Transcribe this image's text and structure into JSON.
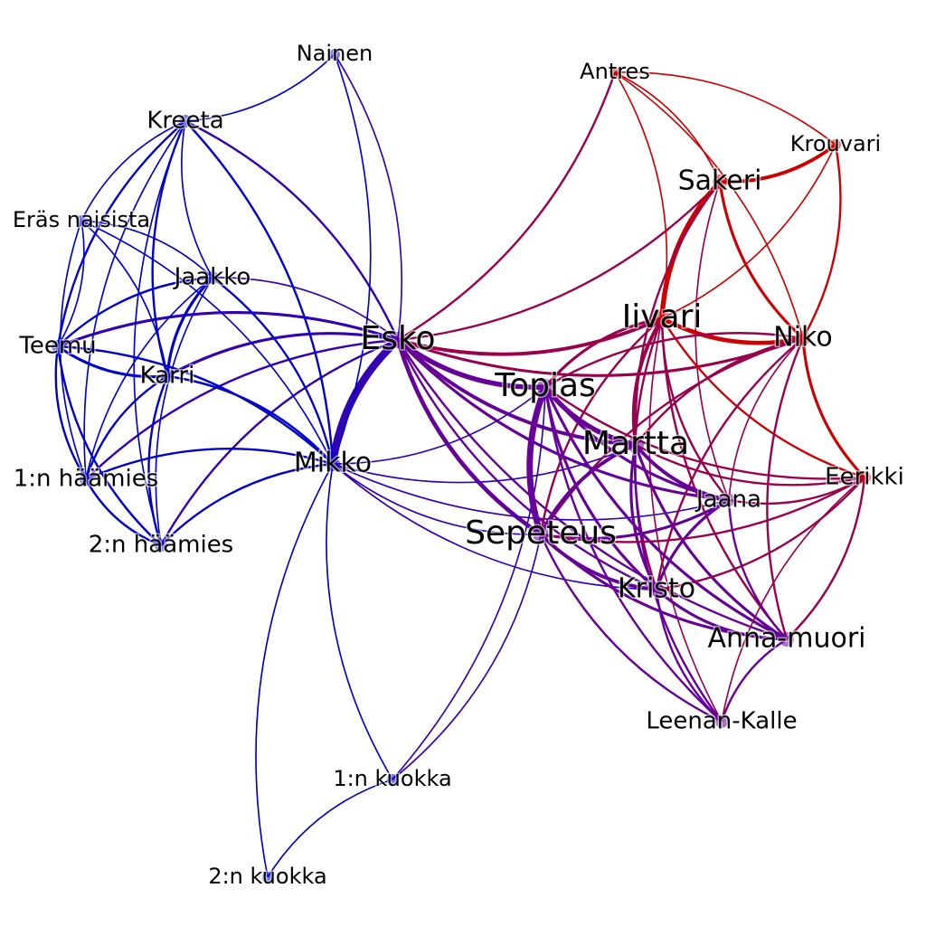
{
  "network": {
    "node_colors": {
      "blue": "#0000cc",
      "red": "#cc0000",
      "mixed": "#660099"
    },
    "nodes": [
      {
        "id": "nainen",
        "label": "Nainen",
        "group": "blue",
        "degree": 2
      },
      {
        "id": "kreeta",
        "label": "Kreeta",
        "group": "blue",
        "degree": 3
      },
      {
        "id": "eras",
        "label": "Eräs naisista",
        "group": "blue",
        "degree": 2
      },
      {
        "id": "jaakko",
        "label": "Jaakko",
        "group": "blue",
        "degree": 3
      },
      {
        "id": "teemu",
        "label": "Teemu",
        "group": "blue",
        "degree": 3
      },
      {
        "id": "karri",
        "label": "Karri",
        "group": "blue",
        "degree": 3
      },
      {
        "id": "esko",
        "label": "Esko",
        "group": "mixed",
        "degree": 5
      },
      {
        "id": "mikko",
        "label": "Mikko",
        "group": "blue",
        "degree": 4
      },
      {
        "id": "haamies1",
        "label": "1:n häämies",
        "group": "blue",
        "degree": 3
      },
      {
        "id": "haamies2",
        "label": "2:n häämies",
        "group": "blue",
        "degree": 3
      },
      {
        "id": "kuokka1",
        "label": "1:n kuokka",
        "group": "blue",
        "degree": 2
      },
      {
        "id": "kuokka2",
        "label": "2:n kuokka",
        "group": "blue",
        "degree": 2
      },
      {
        "id": "antres",
        "label": "Antres",
        "group": "red",
        "degree": 2
      },
      {
        "id": "krouvari",
        "label": "Krouvari",
        "group": "red",
        "degree": 2
      },
      {
        "id": "sakeri",
        "label": "Sakeri",
        "group": "red",
        "degree": 4
      },
      {
        "id": "iivari",
        "label": "Iivari",
        "group": "red",
        "degree": 5
      },
      {
        "id": "niko",
        "label": "Niko",
        "group": "red",
        "degree": 4
      },
      {
        "id": "topias",
        "label": "Topias",
        "group": "mixed",
        "degree": 5
      },
      {
        "id": "martta",
        "label": "Martta",
        "group": "mixed",
        "degree": 5
      },
      {
        "id": "jaana",
        "label": "Jaana",
        "group": "mixed",
        "degree": 3
      },
      {
        "id": "eerikki",
        "label": "Eerikki",
        "group": "red",
        "degree": 3
      },
      {
        "id": "sepeteus",
        "label": "Sepeteus",
        "group": "mixed",
        "degree": 5
      },
      {
        "id": "kristo",
        "label": "Kristo",
        "group": "mixed",
        "degree": 4
      },
      {
        "id": "annamuori",
        "label": "Anna-muori",
        "group": "mixed",
        "degree": 4
      },
      {
        "id": "leenankalle",
        "label": "Leenan-Kalle",
        "group": "mixed",
        "degree": 3
      }
    ],
    "edges": [
      [
        "esko",
        "mikko",
        10
      ],
      [
        "esko",
        "topias",
        6
      ],
      [
        "esko",
        "sepeteus",
        5
      ],
      [
        "esko",
        "martta",
        4
      ],
      [
        "esko",
        "jaana",
        3
      ],
      [
        "esko",
        "iivari",
        4
      ],
      [
        "esko",
        "niko",
        3
      ],
      [
        "esko",
        "sakeri",
        2
      ],
      [
        "esko",
        "antres",
        2
      ],
      [
        "esko",
        "karri",
        3
      ],
      [
        "esko",
        "teemu",
        3
      ],
      [
        "esko",
        "haamies1",
        2
      ],
      [
        "esko",
        "haamies2",
        2
      ],
      [
        "esko",
        "kreeta",
        2
      ],
      [
        "esko",
        "jaakko",
        1
      ],
      [
        "esko",
        "nainen",
        1
      ],
      [
        "esko",
        "kristo",
        2
      ],
      [
        "esko",
        "annamuori",
        2
      ],
      [
        "mikko",
        "teemu",
        2
      ],
      [
        "mikko",
        "karri",
        2
      ],
      [
        "mikko",
        "kreeta",
        2
      ],
      [
        "mikko",
        "jaakko",
        2
      ],
      [
        "mikko",
        "haamies1",
        2
      ],
      [
        "mikko",
        "haamies2",
        2
      ],
      [
        "mikko",
        "nainen",
        1
      ],
      [
        "mikko",
        "kuokka1",
        1
      ],
      [
        "mikko",
        "kuokka2",
        1
      ],
      [
        "mikko",
        "topias",
        1
      ],
      [
        "mikko",
        "sepeteus",
        1
      ],
      [
        "mikko",
        "martta",
        1
      ],
      [
        "mikko",
        "jaana",
        1
      ],
      [
        "mikko",
        "kristo",
        1
      ],
      [
        "mikko",
        "eras",
        1
      ],
      [
        "kreeta",
        "teemu",
        2
      ],
      [
        "kreeta",
        "karri",
        2
      ],
      [
        "kreeta",
        "jaakko",
        1
      ],
      [
        "kreeta",
        "eras",
        1
      ],
      [
        "kreeta",
        "nainen",
        1
      ],
      [
        "kreeta",
        "haamies1",
        1
      ],
      [
        "kreeta",
        "haamies2",
        1
      ],
      [
        "jaakko",
        "teemu",
        2
      ],
      [
        "jaakko",
        "karri",
        3
      ],
      [
        "jaakko",
        "haamies1",
        1
      ],
      [
        "jaakko",
        "haamies2",
        1
      ],
      [
        "jaakko",
        "eras",
        1
      ],
      [
        "teemu",
        "karri",
        3
      ],
      [
        "teemu",
        "haamies1",
        2
      ],
      [
        "teemu",
        "haamies2",
        2
      ],
      [
        "teemu",
        "eras",
        1
      ],
      [
        "karri",
        "haamies1",
        2
      ],
      [
        "karri",
        "haamies2",
        2
      ],
      [
        "karri",
        "eras",
        1
      ],
      [
        "haamies1",
        "haamies2",
        2
      ],
      [
        "eras",
        "haamies1",
        1
      ],
      [
        "kuokka1",
        "kuokka2",
        1
      ],
      [
        "kuokka1",
        "sepeteus",
        1
      ],
      [
        "kuokka1",
        "topias",
        1
      ],
      [
        "sakeri",
        "iivari",
        6
      ],
      [
        "sakeri",
        "krouvari",
        4
      ],
      [
        "sakeri",
        "niko",
        3
      ],
      [
        "sakeri",
        "martta",
        2
      ],
      [
        "sakeri",
        "antres",
        1
      ],
      [
        "sakeri",
        "jaana",
        1
      ],
      [
        "iivari",
        "niko",
        5
      ],
      [
        "iivari",
        "martta",
        4
      ],
      [
        "iivari",
        "topias",
        3
      ],
      [
        "iivari",
        "sepeteus",
        2
      ],
      [
        "iivari",
        "jaana",
        2
      ],
      [
        "iivari",
        "kristo",
        2
      ],
      [
        "iivari",
        "annamuori",
        2
      ],
      [
        "iivari",
        "eerikki",
        2
      ],
      [
        "iivari",
        "krouvari",
        1
      ],
      [
        "iivari",
        "antres",
        1
      ],
      [
        "iivari",
        "leenankalle",
        1
      ],
      [
        "niko",
        "krouvari",
        2
      ],
      [
        "niko",
        "eerikki",
        3
      ],
      [
        "niko",
        "martta",
        2
      ],
      [
        "niko",
        "topias",
        2
      ],
      [
        "niko",
        "sepeteus",
        2
      ],
      [
        "niko",
        "kristo",
        2
      ],
      [
        "niko",
        "annamuori",
        2
      ],
      [
        "niko",
        "antres",
        1
      ],
      [
        "niko",
        "jaana",
        1
      ],
      [
        "topias",
        "martta",
        6
      ],
      [
        "topias",
        "sepeteus",
        8
      ],
      [
        "topias",
        "jaana",
        3
      ],
      [
        "topias",
        "kristo",
        3
      ],
      [
        "topias",
        "annamuori",
        3
      ],
      [
        "topias",
        "leenankalle",
        2
      ],
      [
        "topias",
        "eerikki",
        2
      ],
      [
        "martta",
        "sepeteus",
        4
      ],
      [
        "martta",
        "jaana",
        4
      ],
      [
        "martta",
        "kristo",
        3
      ],
      [
        "martta",
        "annamuori",
        3
      ],
      [
        "martta",
        "leenankalle",
        2
      ],
      [
        "martta",
        "eerikki",
        2
      ],
      [
        "sepeteus",
        "jaana",
        3
      ],
      [
        "sepeteus",
        "kristo",
        4
      ],
      [
        "sepeteus",
        "annamuori",
        3
      ],
      [
        "sepeteus",
        "leenankalle",
        2
      ],
      [
        "sepeteus",
        "eerikki",
        2
      ],
      [
        "jaana",
        "kristo",
        3
      ],
      [
        "jaana",
        "annamuori",
        2
      ],
      [
        "jaana",
        "eerikki",
        2
      ],
      [
        "kristo",
        "annamuori",
        3
      ],
      [
        "kristo",
        "leenankalle",
        2
      ],
      [
        "kristo",
        "eerikki",
        2
      ],
      [
        "annamuori",
        "leenankalle",
        2
      ],
      [
        "annamuori",
        "eerikki",
        2
      ],
      [
        "eerikki",
        "leenankalle",
        1
      ],
      [
        "krouvari",
        "antres",
        1
      ]
    ]
  }
}
